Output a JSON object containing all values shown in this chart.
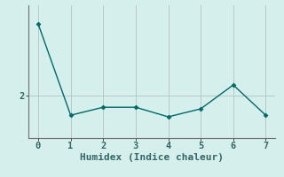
{
  "x": [
    0,
    1,
    2,
    3,
    4,
    5,
    6,
    7
  ],
  "y": [
    3.35,
    1.63,
    1.78,
    1.78,
    1.6,
    1.75,
    2.2,
    1.63
  ],
  "line_color": "#006868",
  "background_color": "#d5f0ec",
  "grid_color": "#b8c8c4",
  "axis_color": "#707070",
  "xlabel": "Humidex (Indice chaleur)",
  "xlabel_fontsize": 8,
  "ytick_labels": [
    "2"
  ],
  "ytick_values": [
    2.0
  ],
  "xticks": [
    0,
    1,
    2,
    3,
    4,
    5,
    6,
    7
  ],
  "ylim": [
    1.2,
    3.7
  ],
  "xlim": [
    -0.3,
    7.3
  ],
  "marker": "D",
  "marker_size": 2.5,
  "line_width": 1.0,
  "tick_fontsize": 7.5
}
